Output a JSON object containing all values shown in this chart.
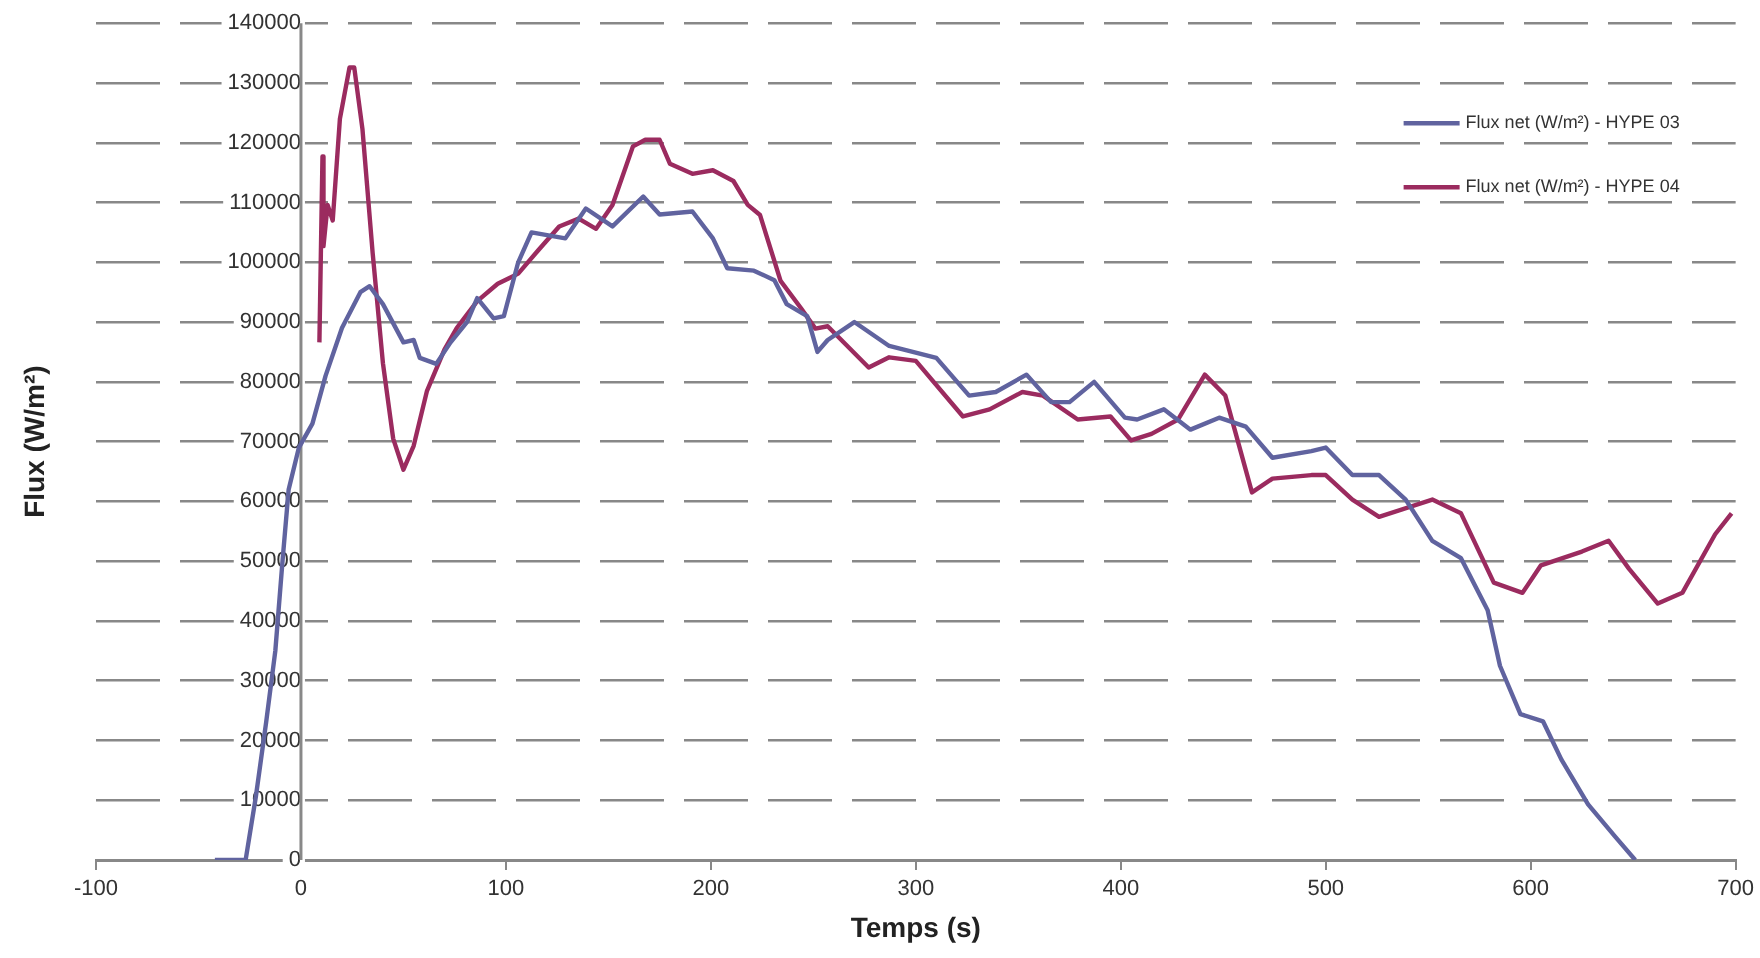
{
  "chart_data": {
    "type": "line",
    "xlabel": "Temps (s)",
    "ylabel": "Flux (W/m²)",
    "xlim": [
      -100,
      700
    ],
    "xticks": [
      -100,
      0,
      100,
      200,
      300,
      400,
      500,
      600,
      700
    ],
    "ylim": [
      0,
      140000
    ],
    "yticks": [
      0,
      10000,
      20000,
      30000,
      40000,
      50000,
      60000,
      70000,
      80000,
      90000,
      100000,
      110000,
      120000,
      130000,
      140000
    ],
    "grid": "y",
    "legend": "top right",
    "marker": "none",
    "line_style": "solid",
    "series": [
      {
        "name": "Flux net (W/m²) - HYPE 03",
        "color": "#60639f",
        "x": [
          -42,
          -27,
          -22,
          -17,
          -12.5,
          -9,
          -6,
          -1,
          5.6,
          12,
          20,
          29,
          33.5,
          40,
          50,
          55,
          58,
          66,
          73,
          81,
          86,
          94,
          99,
          106,
          112.5,
          129,
          139,
          152,
          167,
          175,
          191,
          201,
          208,
          221,
          231,
          237,
          247,
          252,
          257,
          270,
          287,
          310,
          326,
          339,
          354,
          366,
          375,
          387,
          402,
          408,
          421,
          434,
          448,
          461,
          474,
          493,
          500,
          513,
          526,
          539,
          552,
          566,
          579,
          585,
          595,
          606,
          615,
          628,
          641,
          651
        ],
        "values": [
          0,
          0,
          10600,
          23000,
          35000,
          50000,
          62000,
          69000,
          73000,
          81000,
          89000,
          95000,
          96000,
          93000,
          86600,
          87000,
          84000,
          83000,
          86600,
          90000,
          94000,
          90600,
          91000,
          100000,
          105000,
          104000,
          109000,
          106000,
          111000,
          108000,
          108500,
          104000,
          99000,
          98600,
          97000,
          93000,
          91000,
          85000,
          87000,
          90000,
          86000,
          84000,
          77700,
          78300,
          81200,
          76600,
          76600,
          80000,
          74000,
          73700,
          75400,
          72000,
          74000,
          72500,
          67300,
          68400,
          69000,
          64400,
          64400,
          60300,
          53400,
          50500,
          41800,
          32500,
          24400,
          23200,
          16800,
          9300,
          4000,
          0
        ]
      },
      {
        "name": "Flux net (W/m²) - HYPE 04",
        "color": "#9b2b5f",
        "x": [
          9,
          10.5,
          11,
          13,
          15.5,
          19,
          23.7,
          26,
          30,
          35,
          40,
          45,
          50,
          55,
          61.5,
          70,
          76,
          86,
          96,
          106,
          116,
          126,
          135.5,
          144,
          152,
          162,
          168,
          175,
          180,
          191,
          201,
          211,
          218,
          224,
          234,
          244,
          251,
          257,
          277,
          287,
          300,
          323,
          336,
          352,
          362,
          379,
          395,
          405,
          415,
          428,
          441,
          451,
          464,
          474,
          493,
          500,
          513,
          526,
          552,
          566,
          582,
          596,
          605,
          625,
          638,
          648,
          662,
          674,
          690,
          698
        ],
        "values": [
          86600,
          117700,
          102700,
          109600,
          107000,
          124000,
          132600,
          132600,
          122300,
          101500,
          83100,
          70500,
          65300,
          69300,
          78500,
          85400,
          89000,
          93500,
          96400,
          98100,
          102100,
          106000,
          107300,
          105600,
          109600,
          119400,
          120500,
          120500,
          116500,
          114800,
          115400,
          113600,
          109600,
          107900,
          96900,
          92300,
          88900,
          89300,
          82400,
          84100,
          83500,
          74200,
          75400,
          78300,
          77700,
          73700,
          74200,
          70200,
          71300,
          73700,
          81200,
          77700,
          61500,
          63800,
          64400,
          64400,
          60300,
          57400,
          60300,
          58000,
          46400,
          44700,
          49300,
          51600,
          53400,
          48700,
          42900,
          44700,
          54500,
          58000
        ]
      }
    ]
  }
}
